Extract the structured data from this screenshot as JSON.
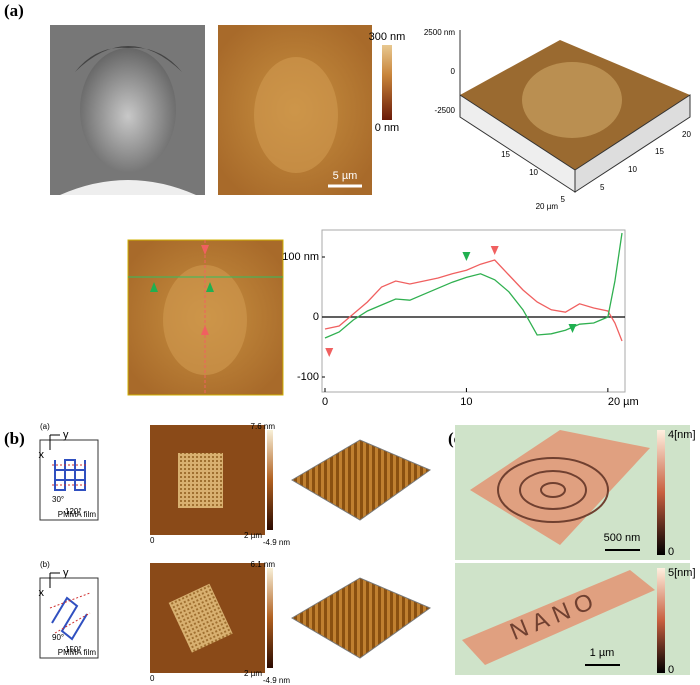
{
  "panel_a": {
    "label": "(a)",
    "colorbar": {
      "max": "300 nm",
      "min": "0 nm"
    },
    "scale_bar": "5 µm",
    "surface_3d": {
      "z_ticks": [
        "2500 nm",
        "0",
        "-2500"
      ],
      "x_ticks": [
        "5",
        "10",
        "15",
        "20"
      ],
      "y_ticks": [
        "5",
        "10",
        "15",
        "20 µm"
      ]
    }
  },
  "chart_data": {
    "type": "line",
    "x": [
      0,
      1,
      2,
      3,
      4,
      5,
      6,
      7,
      8,
      9,
      10,
      11,
      12,
      13,
      14,
      15,
      16,
      17,
      18,
      19,
      20,
      20.5,
      21
    ],
    "series": [
      {
        "color": "#f06060",
        "values": [
          -20,
          -15,
          5,
          25,
          50,
          60,
          55,
          60,
          65,
          72,
          78,
          88,
          95,
          70,
          45,
          25,
          12,
          8,
          22,
          15,
          10,
          -10,
          -40
        ]
      },
      {
        "color": "#30b050",
        "values": [
          -35,
          -25,
          -5,
          10,
          20,
          30,
          28,
          38,
          48,
          58,
          66,
          72,
          62,
          42,
          12,
          -30,
          -28,
          -22,
          -12,
          -10,
          0,
          60,
          140
        ]
      }
    ],
    "xlim": [
      0,
      21
    ],
    "ylim": [
      -125,
      145
    ],
    "xticks": [
      0,
      10,
      {
        "value": 20,
        "label": "20 µm"
      }
    ],
    "yticks": [
      {
        "value": 100,
        "label": "100 nm"
      },
      0,
      -100
    ]
  },
  "panel_b": {
    "label": "(b)",
    "rows": [
      {
        "sublabel": "(a)",
        "axis_y": "y",
        "axis_x": "x",
        "angle_1": "30°",
        "angle_2": "120°",
        "film": "PMMA film",
        "cbar_max": "7.6 nm",
        "cbar_min": "-4.9 nm",
        "x_start": "0",
        "x_end": "2 µm"
      },
      {
        "sublabel": "(b)",
        "axis_y": "y",
        "axis_x": "x",
        "angle_1": "90°",
        "angle_2": "150°",
        "film": "PMMA film",
        "cbar_max": "6.1 nm",
        "cbar_min": "-4.9 nm",
        "x_start": "0",
        "x_end": "2 µm"
      }
    ]
  },
  "panel_c": {
    "label": "(c)",
    "images": [
      {
        "cbar_max": "4[nm]",
        "cbar_min": "0",
        "scale_bar": "500 nm"
      },
      {
        "cbar_max": "5[nm]",
        "cbar_min": "0",
        "scale_bar": "1 µm",
        "engraved_text": "NANO"
      }
    ]
  }
}
